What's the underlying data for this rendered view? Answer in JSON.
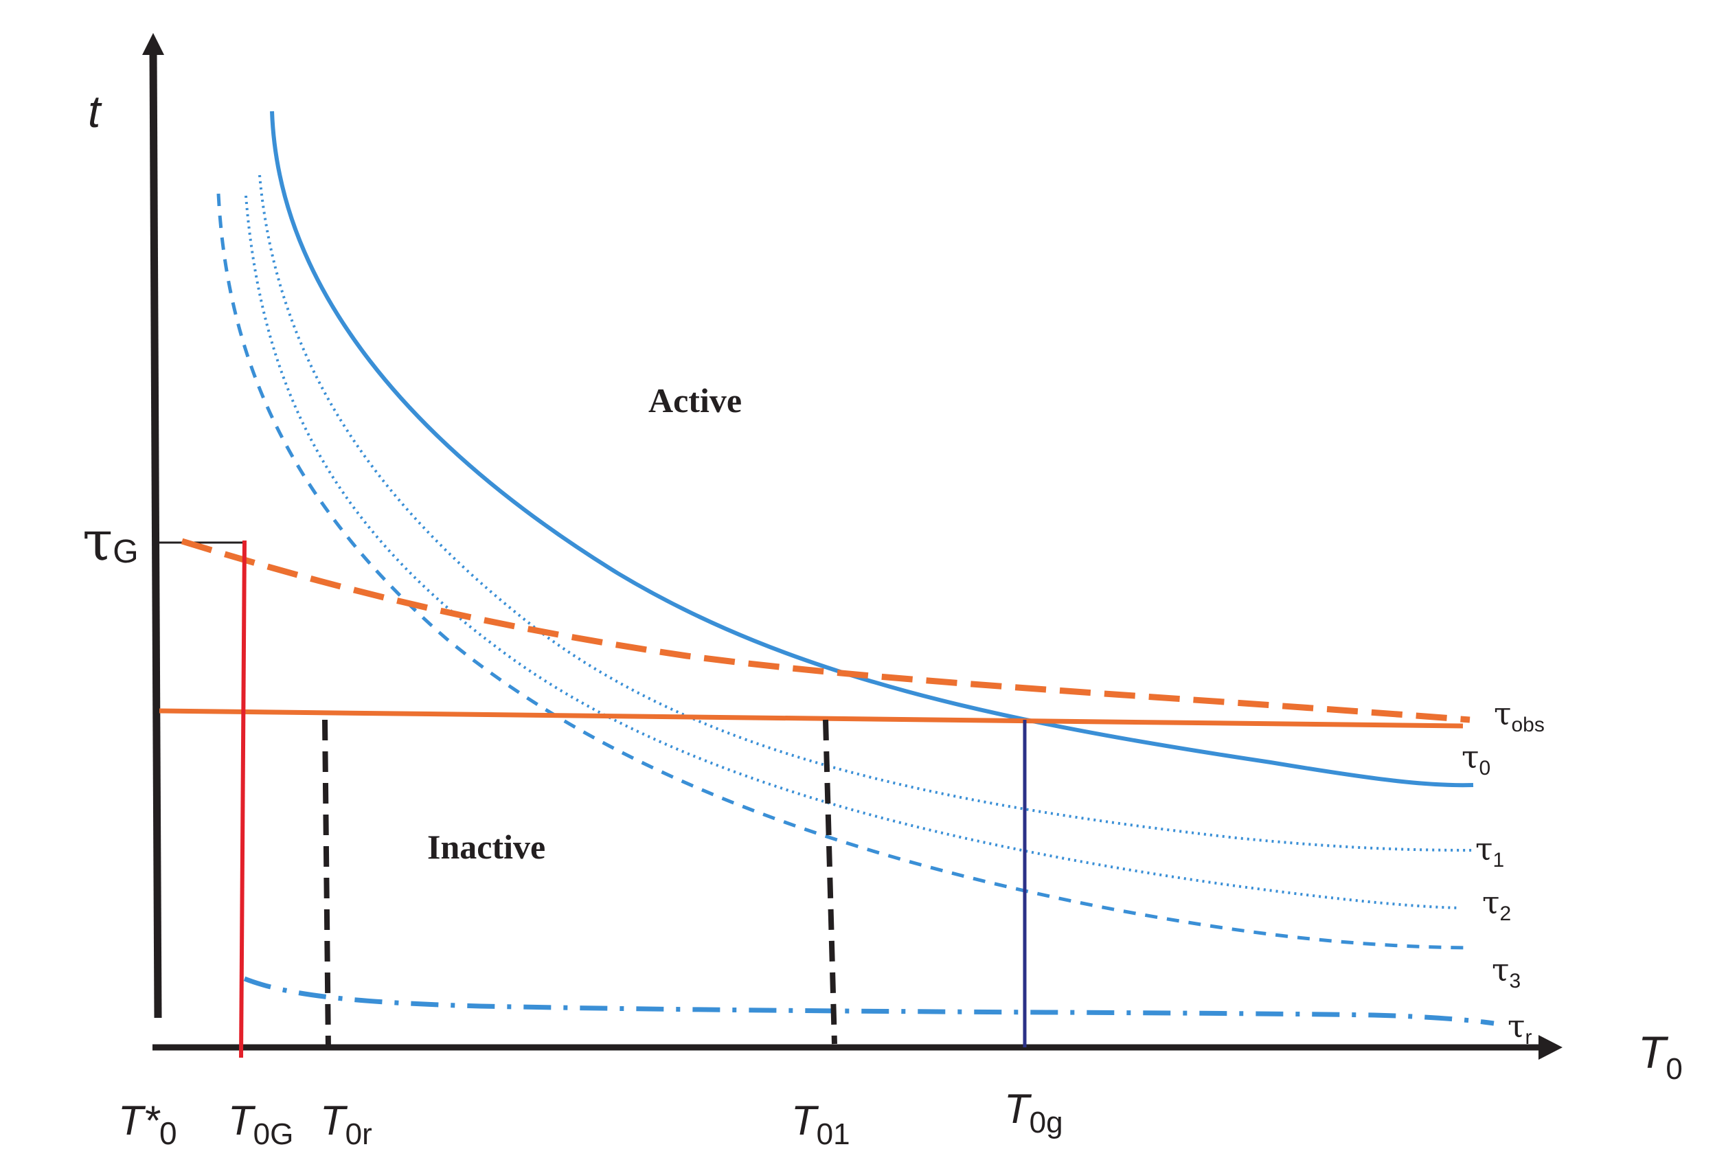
{
  "axes": {
    "y_label": "t",
    "x_label": "T",
    "x_label_sub": "0"
  },
  "regions": {
    "active": "Active",
    "inactive": "Inactive"
  },
  "y_marker": {
    "symbol": "τ",
    "sub": "G"
  },
  "x_ticks": [
    {
      "main": "T*",
      "sub": "0"
    },
    {
      "main": "T",
      "sub": "0G"
    },
    {
      "main": "T",
      "sub": "0r"
    },
    {
      "main": "T",
      "sub": "01"
    },
    {
      "main": "T",
      "sub": "0g"
    }
  ],
  "curves": [
    {
      "symbol": "τ",
      "sub": "obs",
      "style": "orange-dashed"
    },
    {
      "symbol": "τ",
      "sub": "0",
      "style": "blue-solid"
    },
    {
      "symbol": "τ",
      "sub": "1",
      "style": "blue-dotted"
    },
    {
      "symbol": "τ",
      "sub": "2",
      "style": "blue-dashed"
    },
    {
      "symbol": "τ",
      "sub": "3",
      "style": "none"
    },
    {
      "symbol": "τ",
      "sub": "r",
      "style": "blue-dash-dot"
    }
  ],
  "colors": {
    "axis": "#231f20",
    "blue": "#3a8fd6",
    "orange": "#ec7030",
    "red": "#e3202a",
    "navy": "#2b3187",
    "black_dashed": "#231f20"
  }
}
